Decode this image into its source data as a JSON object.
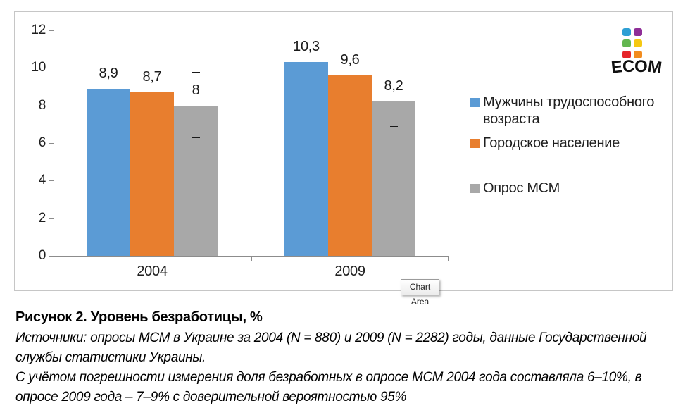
{
  "chart_data": {
    "type": "bar",
    "title": "",
    "xlabel": "",
    "ylabel": "",
    "categories": [
      "2004",
      "2009"
    ],
    "series": [
      {
        "name": "Мужчины трудоспособного возраста",
        "color": "#5B9BD5",
        "values": [
          8.9,
          10.3
        ],
        "labels": [
          "8,9",
          "10,3"
        ]
      },
      {
        "name": "Городское население",
        "color": "#E87E2E",
        "values": [
          8.7,
          9.6
        ],
        "labels": [
          "8,7",
          "9,6"
        ]
      },
      {
        "name": "Опрос МСМ",
        "color": "#A8A8A8",
        "values": [
          8.0,
          8.2
        ],
        "labels": [
          "8",
          "8,2"
        ],
        "error_bars": [
          {
            "low": 6.3,
            "high": 9.8
          },
          {
            "low": 6.9,
            "high": 9.1
          }
        ]
      }
    ],
    "ylim": [
      0,
      12
    ],
    "yticks": [
      0,
      2,
      4,
      6,
      8,
      10,
      12
    ],
    "grid": false,
    "legend_position": "right"
  },
  "tooltip": {
    "label": "Chart Area"
  },
  "logo": {
    "text": "ECOM",
    "square_colors": [
      "#2E9FD4",
      "#8F2E97",
      "#62B64F",
      "#F5C811",
      "#E62429",
      "#F28C1E"
    ]
  },
  "caption": {
    "title": "Рисунок 2. Уровень безработицы, %",
    "lines": [
      "Источники: опросы МСМ в Украине за 2004 (N = 880) и 2009 (N = 2282) годы, данные Государственной",
      "службы статистики Украины.",
      "С учётом погрешности измерения доля безработных в опросе МСМ 2004 года составляла 6–10%, в",
      "опросе 2009 года – 7–9% с доверительной вероятностью 95%"
    ]
  },
  "colors": {
    "axis": "#8C8C8C",
    "frame_border": "#C6C6C6",
    "error_bar": "#1A1A1A"
  }
}
